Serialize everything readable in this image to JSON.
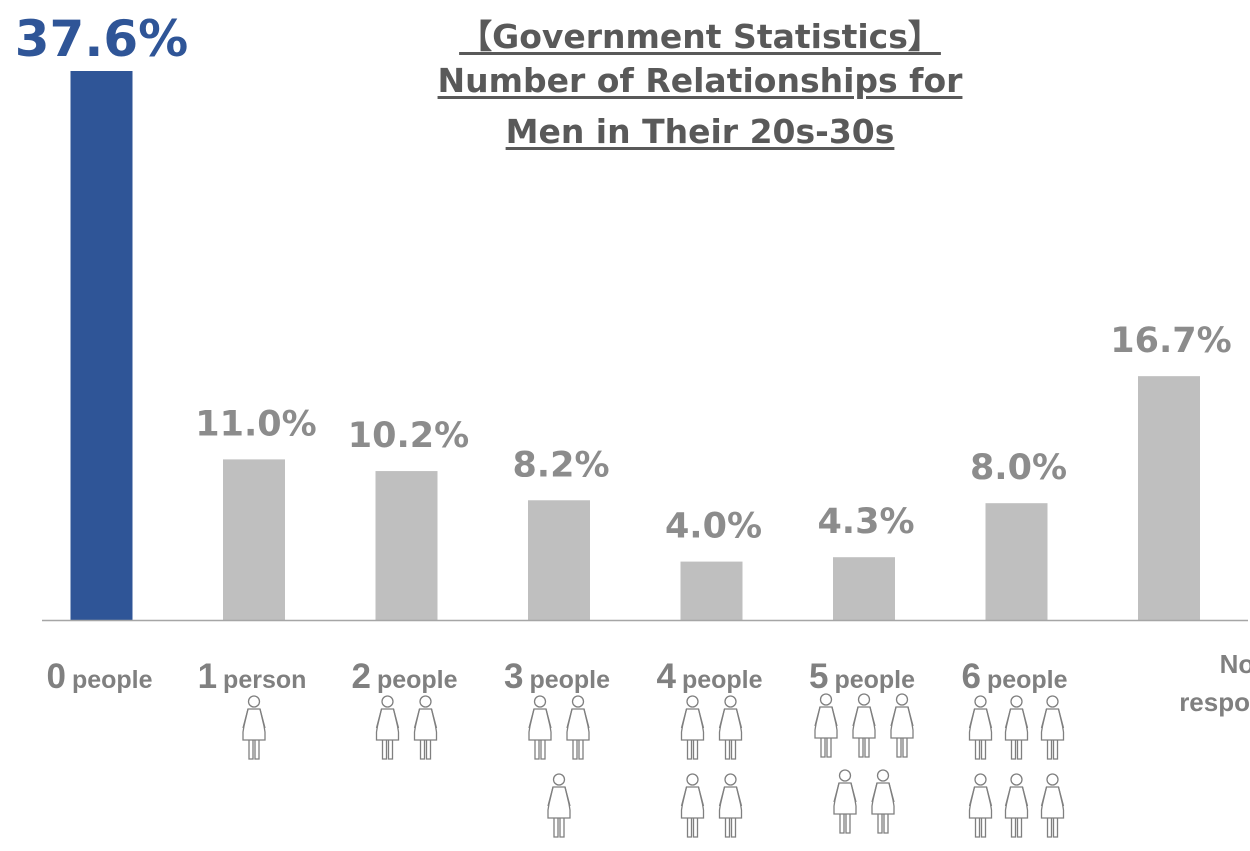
{
  "title": {
    "line1": "【Government Statistics】",
    "line2": "Number of Relationships for",
    "line3": "Men in Their 20s-30s"
  },
  "chart_data": {
    "type": "bar",
    "categories": [
      {
        "number": "0",
        "unit": "people",
        "figures": 0
      },
      {
        "number": "1",
        "unit": "person",
        "figures": 1
      },
      {
        "number": "2",
        "unit": "people",
        "figures": 2
      },
      {
        "number": "3",
        "unit": "people",
        "figures": 3
      },
      {
        "number": "4",
        "unit": "people",
        "figures": 4
      },
      {
        "number": "5",
        "unit": "people",
        "figures": 5
      },
      {
        "number": "6",
        "unit": "people",
        "figures": 6
      },
      {
        "number": "",
        "unit": "",
        "label_lines": [
          "No",
          "response"
        ],
        "figures": 0
      }
    ],
    "values": [
      37.6,
      11.0,
      10.2,
      8.2,
      4.0,
      4.3,
      8.0,
      16.7
    ],
    "value_labels": [
      "37.6%",
      "11.0%",
      "10.2%",
      "8.2%",
      "4.0%",
      "4.3%",
      "8.0%",
      "16.7%"
    ],
    "highlight_index": 0,
    "colors": {
      "highlight": "#2f5597",
      "default": "#bfbfbf",
      "axis": "#a6a6a6"
    },
    "icon": "woman-figure-icon",
    "ylim": [
      0,
      38.5
    ],
    "grid": false,
    "legend": "none"
  }
}
